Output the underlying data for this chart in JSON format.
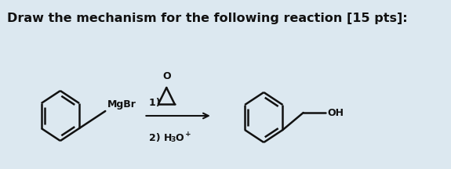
{
  "title": "Draw the mechanism for the following reaction [15 pts]:",
  "title_fontsize": 11.5,
  "title_fontweight": "bold",
  "bg_color": "#dce8f0",
  "text_color": "#111111",
  "line_width": 1.8,
  "mgbr_label": "MgBr",
  "oh_label": "OH",
  "cond1": "1) ",
  "cond2": "2) H",
  "cond2_sub": "3",
  "cond2_mid": "O",
  "cond2_sup": "+"
}
